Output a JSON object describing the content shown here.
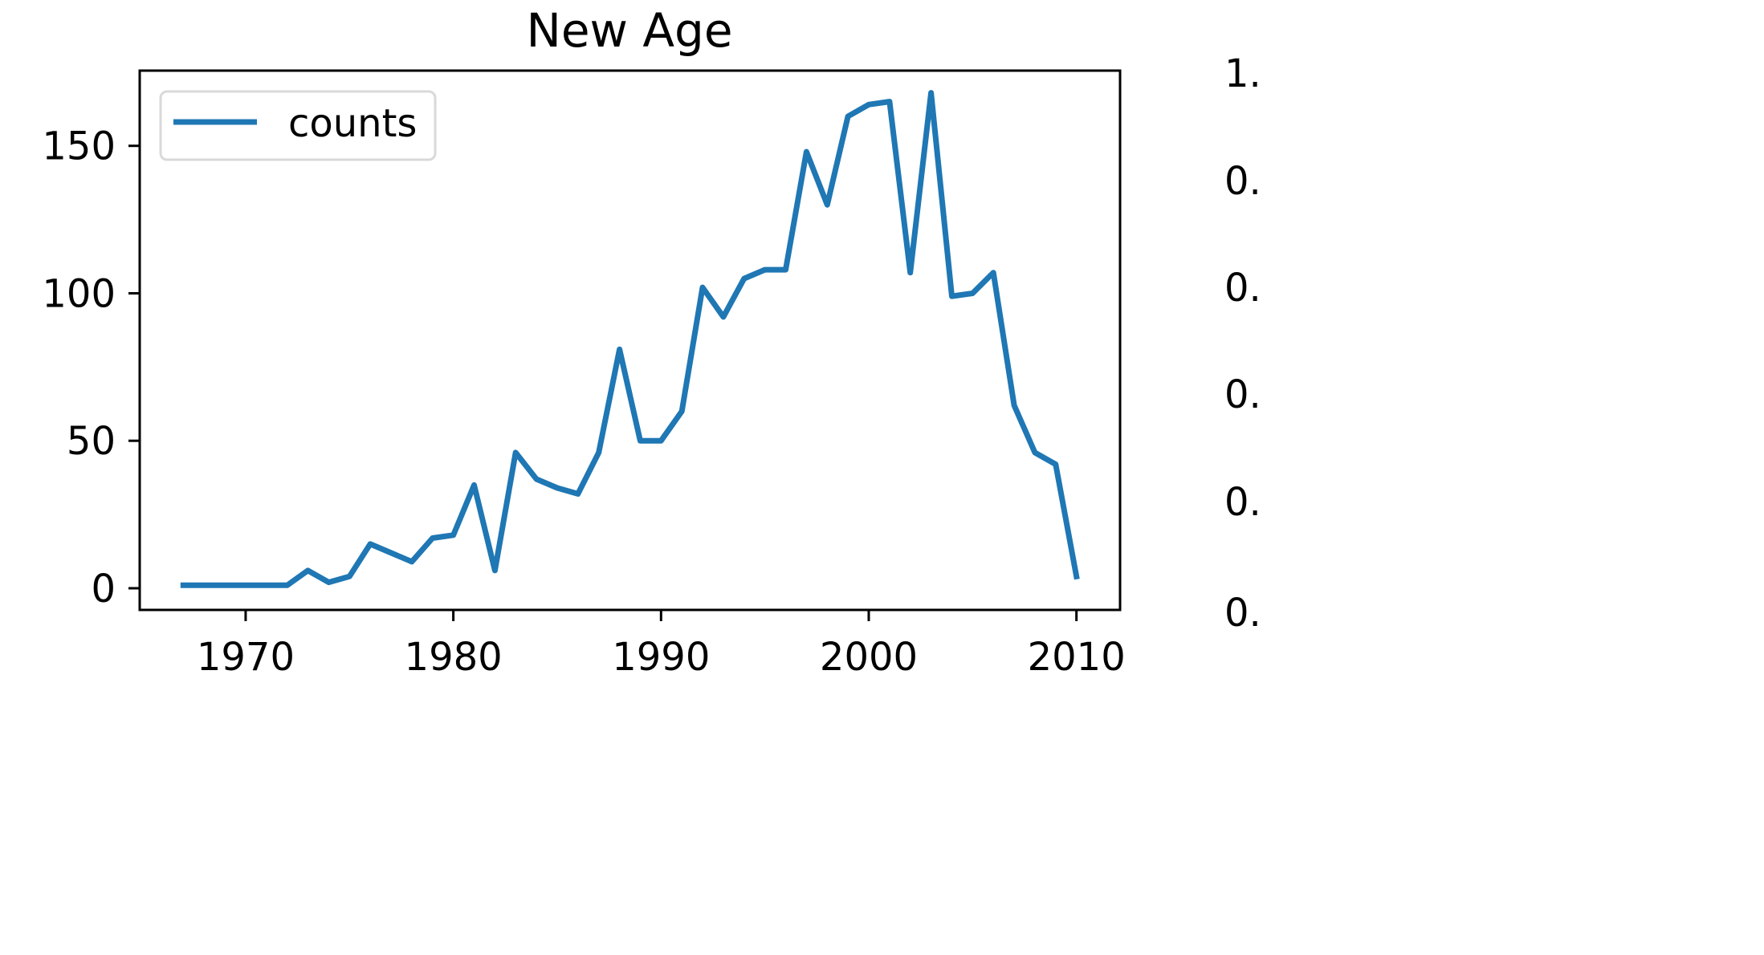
{
  "chart_data": [
    {
      "type": "line",
      "title": "New Age",
      "xlabel": "",
      "ylabel": "",
      "xlim": [
        1964.9,
        2012.1
      ],
      "ylim": [
        -7.35,
        175.5
      ],
      "xticks": [
        1970,
        1980,
        1990,
        2000,
        2010
      ],
      "yticks": [
        0,
        50,
        100,
        150
      ],
      "xtick_labels": [
        "1970",
        "1980",
        "1990",
        "2000",
        "2010"
      ],
      "ytick_labels": [
        "0",
        "50",
        "100",
        "150"
      ],
      "grid": false,
      "legend": {
        "position": "upper-left",
        "entries": [
          "counts"
        ]
      },
      "series": [
        {
          "name": "counts",
          "color": "#1f77b4",
          "x": [
            1967,
            1968,
            1969,
            1970,
            1971,
            1972,
            1973,
            1974,
            1975,
            1976,
            1977,
            1978,
            1979,
            1980,
            1981,
            1982,
            1983,
            1984,
            1985,
            1986,
            1987,
            1988,
            1989,
            1990,
            1991,
            1992,
            1993,
            1994,
            1995,
            1996,
            1997,
            1998,
            1999,
            2000,
            2001,
            2002,
            2003,
            2004,
            2005,
            2006,
            2007,
            2008,
            2009,
            2010
          ],
          "values": [
            1,
            1,
            1,
            1,
            1,
            1,
            6,
            2,
            4,
            15,
            12,
            9,
            17,
            18,
            35,
            6,
            46,
            37,
            34,
            32,
            46,
            81,
            50,
            50,
            60,
            102,
            92,
            105,
            108,
            108,
            148,
            130,
            160,
            164,
            165,
            107,
            168,
            99,
            100,
            107,
            62,
            46,
            42,
            4
          ]
        }
      ]
    },
    {
      "type": "line",
      "title": "",
      "ytick_labels": [
        "1.",
        "0.",
        "0.",
        "0.",
        "0.",
        "0."
      ]
    }
  ]
}
